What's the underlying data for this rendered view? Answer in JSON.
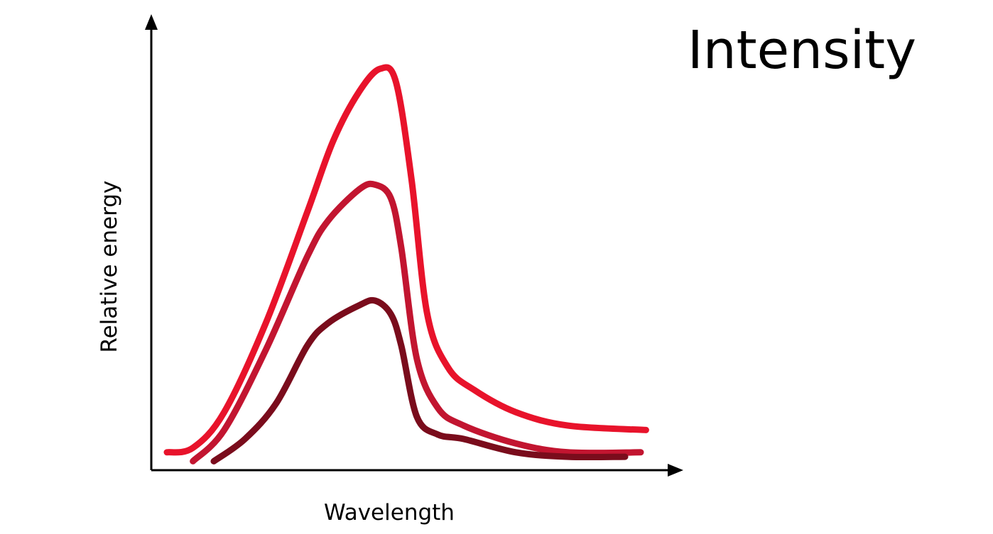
{
  "chart_data": {
    "type": "line",
    "title": "Intensity",
    "xlabel": "Wavelength",
    "ylabel": "Relative energy",
    "grid": false,
    "legend": "none",
    "x_range": [
      0,
      100
    ],
    "y_range": [
      0,
      100
    ],
    "series": [
      {
        "color": "#e8132b",
        "points": [
          [
            3,
            4
          ],
          [
            8,
            5
          ],
          [
            14,
            13
          ],
          [
            22,
            33
          ],
          [
            30,
            58
          ],
          [
            35,
            74
          ],
          [
            40,
            85
          ],
          [
            44,
            90
          ],
          [
            47,
            87
          ],
          [
            50,
            65
          ],
          [
            53,
            35
          ],
          [
            57,
            23
          ],
          [
            62,
            18
          ],
          [
            70,
            13
          ],
          [
            80,
            10
          ],
          [
            95,
            9
          ]
        ]
      },
      {
        "color": "#c21530",
        "points": [
          [
            8,
            2
          ],
          [
            14,
            9
          ],
          [
            22,
            27
          ],
          [
            30,
            48
          ],
          [
            34,
            56
          ],
          [
            40,
            63
          ],
          [
            43,
            64
          ],
          [
            46,
            61
          ],
          [
            48,
            50
          ],
          [
            51,
            25
          ],
          [
            55,
            14
          ],
          [
            60,
            10
          ],
          [
            70,
            6
          ],
          [
            80,
            4
          ],
          [
            94,
            4
          ]
        ]
      },
      {
        "color": "#7a0c1c",
        "points": [
          [
            12,
            2
          ],
          [
            18,
            7
          ],
          [
            24,
            15
          ],
          [
            30,
            28
          ],
          [
            34,
            33
          ],
          [
            40,
            37
          ],
          [
            43,
            38
          ],
          [
            46,
            35
          ],
          [
            48,
            28
          ],
          [
            51,
            12
          ],
          [
            55,
            8
          ],
          [
            60,
            7
          ],
          [
            70,
            4
          ],
          [
            80,
            3
          ],
          [
            91,
            3
          ]
        ]
      }
    ]
  }
}
